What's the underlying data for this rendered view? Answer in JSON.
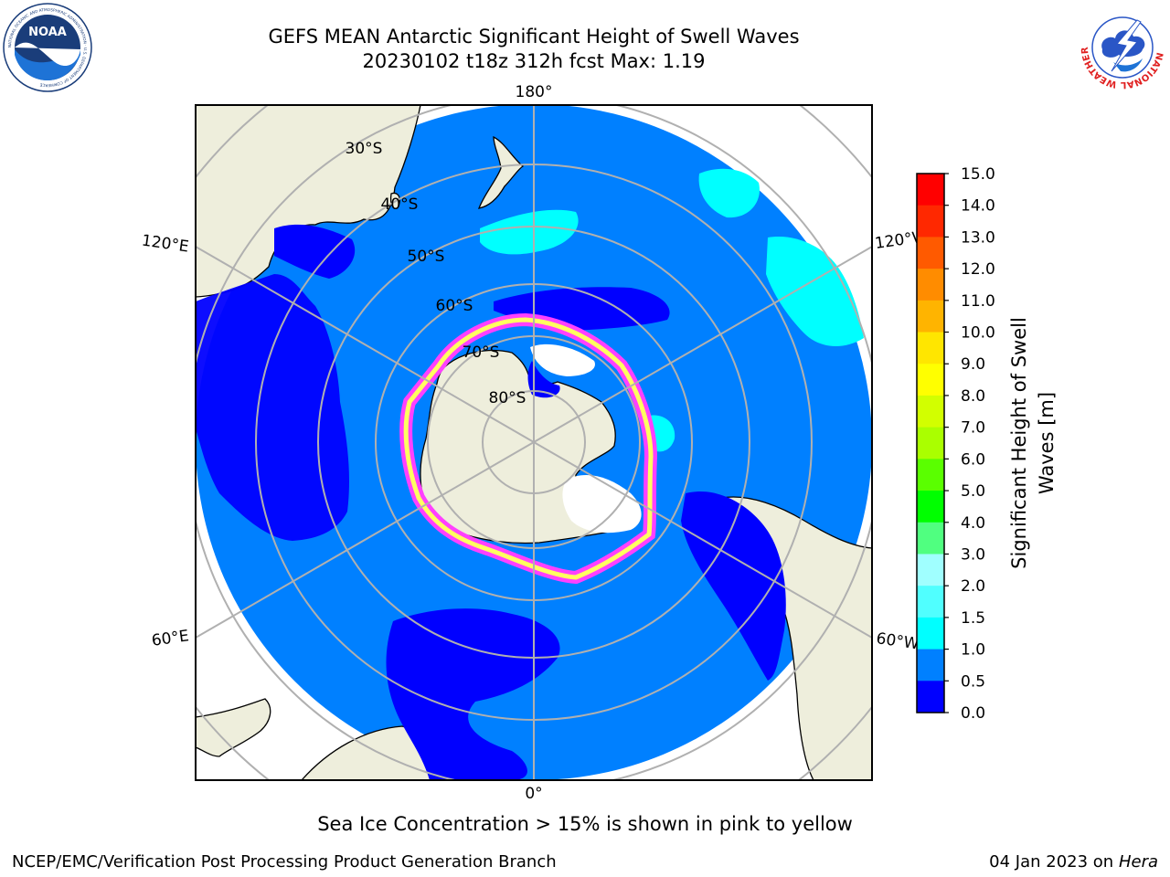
{
  "header": {
    "title": "GEFS MEAN Antarctic Significant Height of Swell Waves",
    "subtitle": "20230102 t18z 312h fcst   Max: 1.19"
  },
  "logos": {
    "left": {
      "icon": "noaa-logo",
      "text": "NOAA",
      "ring_text": "NATIONAL OCEANIC AND ATMOSPHERIC ADMINISTRATION · U.S. DEPARTMENT OF COMMERCE"
    },
    "right": {
      "icon": "national-weather-service-logo",
      "ring_text": "NATIONAL WEATHER SERVICE"
    }
  },
  "map": {
    "projection": "south-polar-stereographic",
    "meridian_labels": {
      "top": "180°",
      "bottom": "0°",
      "left_upper": "120°E",
      "left_lower": "60°E",
      "right_upper": "120°W",
      "right_lower": "60°W"
    },
    "latitude_labels": [
      "30°S",
      "40°S",
      "50°S",
      "60°S",
      "70°S",
      "80°S"
    ],
    "colors": {
      "ocean_low": "#0080ff",
      "ocean_lowest": "#0000ff",
      "land": "#eeeedc",
      "ice_pink": "#ff40ff",
      "ice_yellow": "#ffff60",
      "ice_white": "#ffffff",
      "swell_cyan": "#00ffff",
      "grid": "#b0b0b0"
    }
  },
  "colorbar": {
    "ticks": [
      "15.0",
      "14.0",
      "13.0",
      "12.0",
      "11.0",
      "10.0",
      "9.0",
      "8.0",
      "7.0",
      "6.0",
      "5.0",
      "4.0",
      "3.0",
      "2.0",
      "1.5",
      "1.0",
      "0.5",
      "0.0"
    ],
    "colors": [
      "#ff0000",
      "#ff2800",
      "#ff5a00",
      "#ff8c00",
      "#ffb400",
      "#ffe600",
      "#ffff00",
      "#d2ff00",
      "#aaff00",
      "#5aff00",
      "#00ff00",
      "#50ff80",
      "#a0ffff",
      "#50ffff",
      "#00ffff",
      "#0080ff",
      "#0000ff"
    ],
    "title_line1": "Significant Height of Swell",
    "title_line2": "Waves [m]"
  },
  "note": "Sea Ice Concentration > 15% is shown in pink to yellow",
  "footer": {
    "left": "NCEP/EMC/Verification Post Processing Product Generation Branch",
    "right_date": "04 Jan 2023 on ",
    "right_machine": "Hera"
  }
}
